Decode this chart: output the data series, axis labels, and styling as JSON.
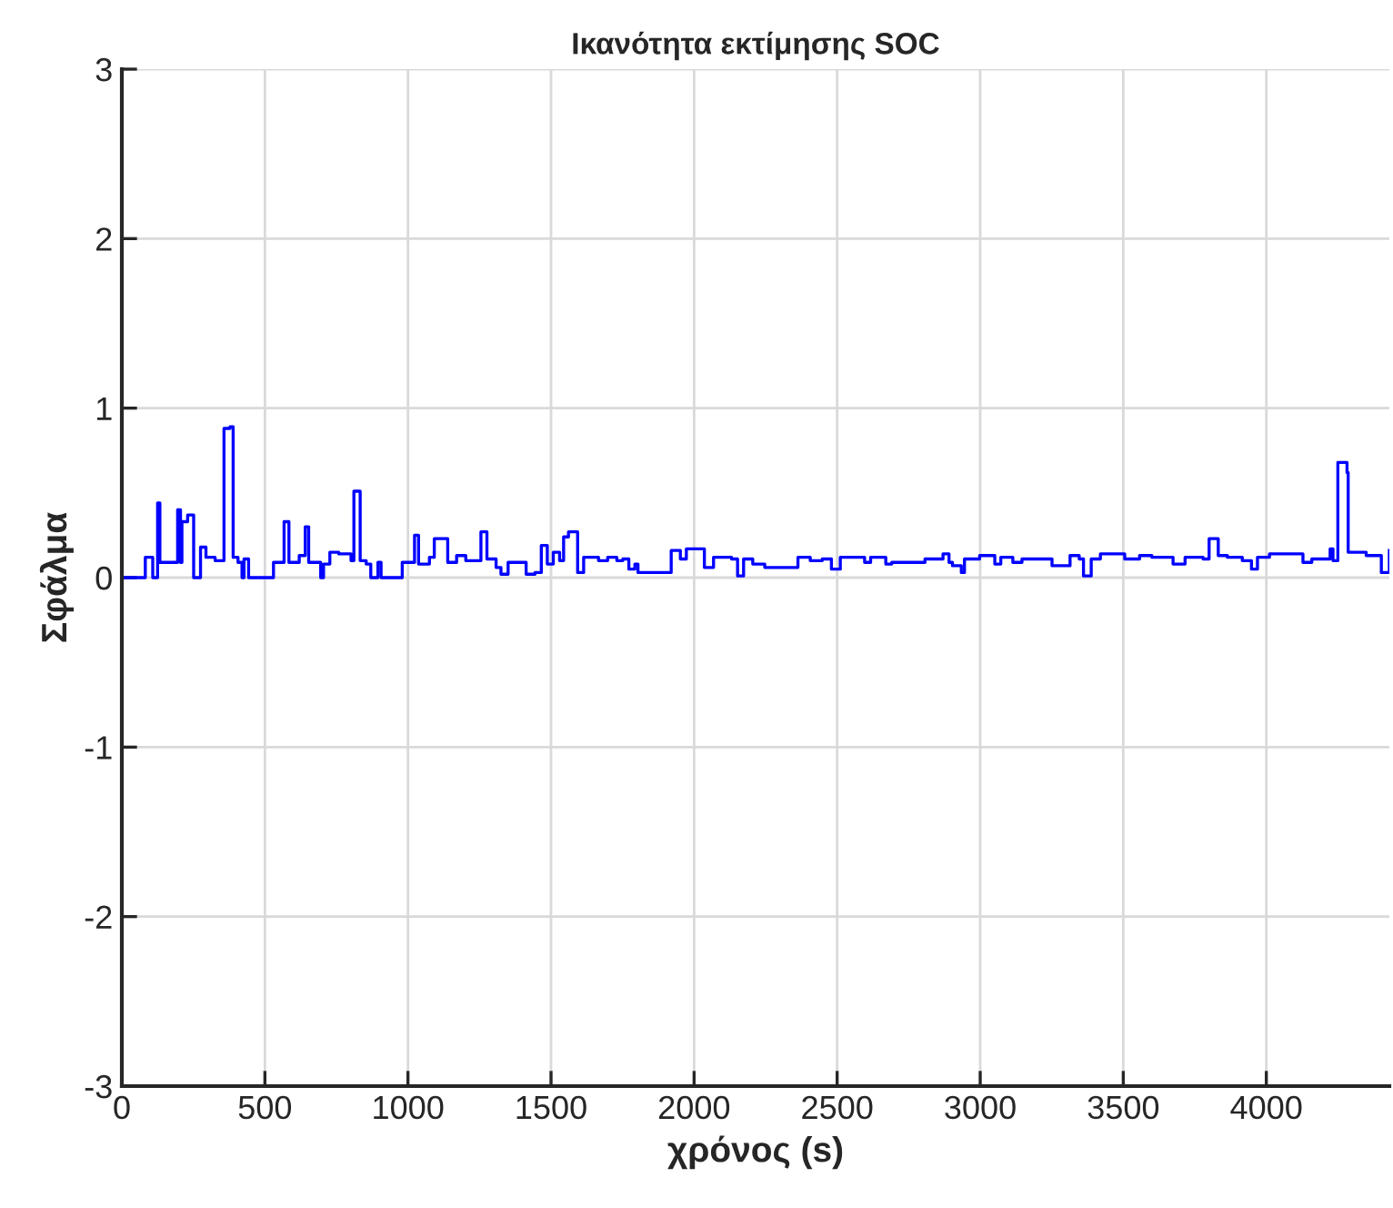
{
  "chart_data": {
    "type": "step",
    "title": "Ικανότητα εκτίμησης SOC",
    "xlabel": "χρόνος (s)",
    "ylabel": "Σφάλμα",
    "x": [
      0,
      82,
      108,
      125,
      133,
      195,
      205,
      210,
      230,
      251,
      275,
      294,
      326,
      357,
      378,
      389,
      406,
      420,
      427,
      443,
      530,
      567,
      584,
      620,
      641,
      653,
      695,
      705,
      727,
      758,
      801,
      811,
      833,
      854,
      870,
      895,
      906,
      980,
      1023,
      1037,
      1075,
      1092,
      1107,
      1139,
      1170,
      1202,
      1255,
      1276,
      1308,
      1325,
      1350,
      1413,
      1444,
      1466,
      1487,
      1508,
      1530,
      1544,
      1561,
      1593,
      1614,
      1666,
      1698,
      1730,
      1751,
      1772,
      1793,
      1804,
      1867,
      1920,
      1952,
      1973,
      2015,
      2036,
      2068,
      2131,
      2152,
      2173,
      2205,
      2247,
      2321,
      2363,
      2406,
      2448,
      2480,
      2511,
      2564,
      2596,
      2617,
      2670,
      2691,
      2765,
      2807,
      2870,
      2891,
      2903,
      2934,
      2945,
      2998,
      3051,
      3072,
      3114,
      3146,
      3219,
      3251,
      3314,
      3346,
      3361,
      3388,
      3420,
      3505,
      3557,
      3600,
      3674,
      3716,
      3779,
      3800,
      3832,
      3864,
      3916,
      3948,
      3969,
      4011,
      4096,
      4128,
      4159,
      4223,
      4233,
      4250,
      4282,
      4286,
      4349,
      4402,
      4430
    ],
    "series": [
      {
        "color": "#0000ff",
        "values": [
          0,
          0.12,
          0,
          0.44,
          0.09,
          0.4,
          0.09,
          0.33,
          0.37,
          0,
          0.18,
          0.12,
          0.1,
          0.88,
          0.89,
          0.12,
          0.09,
          0,
          0.11,
          0,
          0.09,
          0.33,
          0.09,
          0.13,
          0.3,
          0.09,
          0,
          0.08,
          0.15,
          0.14,
          0.1,
          0.51,
          0.1,
          0.08,
          0,
          0.09,
          0,
          0.09,
          0.25,
          0.08,
          0.12,
          0.23,
          0.23,
          0.09,
          0.13,
          0.1,
          0.27,
          0.11,
          0.06,
          0.02,
          0.09,
          0.02,
          0.03,
          0.19,
          0.08,
          0.15,
          0.1,
          0.24,
          0.27,
          0.03,
          0.12,
          0.1,
          0.12,
          0.1,
          0.11,
          0.05,
          0.08,
          0.03,
          0.03,
          0.16,
          0.11,
          0.17,
          0.17,
          0.06,
          0.12,
          0.11,
          0.01,
          0.11,
          0.08,
          0.06,
          0.06,
          0.12,
          0.1,
          0.11,
          0.05,
          0.12,
          0.12,
          0.09,
          0.12,
          0.08,
          0.09,
          0.09,
          0.11,
          0.14,
          0.09,
          0.07,
          0.03,
          0.11,
          0.13,
          0.08,
          0.12,
          0.09,
          0.11,
          0.11,
          0.07,
          0.13,
          0.11,
          0.01,
          0.11,
          0.14,
          0.11,
          0.13,
          0.12,
          0.08,
          0.12,
          0.11,
          0.23,
          0.13,
          0.12,
          0.1,
          0.05,
          0.12,
          0.14,
          0.14,
          0.09,
          0.11,
          0.17,
          0.1,
          0.68,
          0.62,
          0.15,
          0.13,
          0.03,
          0.16
        ]
      }
    ],
    "xlim": [
      0,
      4430
    ],
    "ylim": [
      -3,
      3
    ],
    "xticks": [
      0,
      500,
      1000,
      1500,
      2000,
      2500,
      3000,
      3500,
      4000
    ],
    "yticks": [
      -3,
      -2,
      -1,
      0,
      1,
      2,
      3
    ],
    "grid": true,
    "legend": false,
    "marker": "none",
    "line_style": "solid"
  }
}
